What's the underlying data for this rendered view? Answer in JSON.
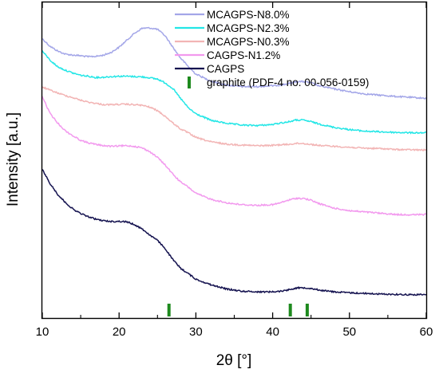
{
  "chart_data": {
    "type": "line",
    "xlabel": "2θ [°]",
    "ylabel": "Intensity [a.u.]",
    "xlim": [
      10,
      60
    ],
    "ylim": [
      0,
      100
    ],
    "xticks": [
      "10",
      "20",
      "30",
      "40",
      "50",
      "60"
    ],
    "yticks_shown": false,
    "legend_position": "top-center",
    "series": [
      {
        "name": "MCAGPS-N8.0%",
        "color": "#a3a6e8",
        "x": [
          10,
          11,
          12,
          13,
          14,
          15,
          16,
          17,
          18,
          19,
          20,
          21,
          22,
          23,
          24,
          25,
          26,
          27,
          28,
          29,
          30,
          32,
          34,
          36,
          38,
          40,
          41,
          42,
          43,
          44,
          45,
          46,
          48,
          50,
          52,
          54,
          56,
          58,
          60
        ],
        "y": [
          88.5,
          86.1,
          84.6,
          83.6,
          83.3,
          83.1,
          82.8,
          82.9,
          83.3,
          84.2,
          85.8,
          88.0,
          90.2,
          91.8,
          91.9,
          91.5,
          89.4,
          85.8,
          82.4,
          79.7,
          77.3,
          75.0,
          73.8,
          73.3,
          73.3,
          73.6,
          73.8,
          74.2,
          74.9,
          74.9,
          74.5,
          73.6,
          72.6,
          71.7,
          71.0,
          70.6,
          70.2,
          69.9,
          69.6
        ]
      },
      {
        "name": "MCAGPS-N2.3%",
        "color": "#22e6e6",
        "x": [
          10,
          11,
          12,
          13,
          14,
          15,
          16,
          17,
          18,
          19,
          20,
          21,
          22,
          23,
          24,
          25,
          26,
          27,
          28,
          29,
          30,
          32,
          34,
          36,
          38,
          40,
          41,
          42,
          43,
          44,
          45,
          46,
          48,
          50,
          52,
          54,
          56,
          58,
          60
        ],
        "y": [
          84.6,
          81.7,
          79.6,
          78.5,
          77.6,
          76.9,
          76.6,
          76.2,
          76.3,
          76.5,
          76.6,
          76.6,
          76.5,
          76.4,
          76.1,
          75.7,
          74.5,
          72.7,
          69.6,
          66.6,
          64.7,
          62.6,
          61.7,
          61.1,
          61.0,
          61.3,
          61.8,
          62.1,
          62.7,
          62.7,
          62.2,
          61.5,
          60.4,
          59.7,
          59.2,
          59.0,
          58.8,
          58.7,
          58.7
        ]
      },
      {
        "name": "MCAGPS-N0.3%",
        "color": "#f2b4b4",
        "x": [
          10,
          11,
          12,
          13,
          14,
          15,
          16,
          17,
          18,
          19,
          20,
          21,
          22,
          23,
          24,
          25,
          26,
          27,
          28,
          29,
          30,
          32,
          34,
          36,
          38,
          40,
          41,
          42,
          43,
          44,
          45,
          46,
          48,
          50,
          52,
          54,
          56,
          58,
          60
        ],
        "y": [
          73.2,
          72.2,
          71.3,
          70.5,
          69.8,
          69.0,
          68.4,
          68.0,
          67.6,
          67.6,
          67.7,
          67.7,
          67.6,
          67.4,
          66.8,
          65.7,
          63.9,
          61.8,
          59.9,
          58.7,
          57.2,
          55.8,
          55.1,
          54.8,
          54.6,
          54.7,
          54.9,
          55.0,
          55.3,
          55.3,
          55.0,
          54.7,
          54.4,
          54.1,
          53.8,
          53.7,
          53.4,
          53.3,
          53.2
        ]
      },
      {
        "name": "CAGPS-N1.2%",
        "color": "#f299ee",
        "x": [
          10,
          11,
          12,
          13,
          14,
          15,
          16,
          17,
          18,
          19,
          20,
          21,
          22,
          23,
          24,
          25,
          26,
          27,
          28,
          29,
          30,
          32,
          34,
          36,
          38,
          40,
          41,
          42,
          43,
          44,
          45,
          46,
          48,
          50,
          52,
          54,
          56,
          58,
          60
        ],
        "y": [
          70.2,
          64.8,
          61.8,
          59.3,
          57.7,
          56.3,
          55.5,
          55.0,
          54.6,
          54.4,
          54.5,
          54.6,
          54.4,
          53.9,
          52.7,
          50.9,
          48.5,
          45.6,
          43.1,
          41.5,
          39.5,
          37.6,
          36.5,
          35.9,
          35.7,
          35.9,
          36.5,
          37.3,
          37.9,
          37.9,
          37.3,
          36.3,
          34.8,
          34.0,
          33.6,
          33.2,
          32.8,
          32.7,
          32.8
        ]
      },
      {
        "name": "CAGPS",
        "color": "#14124f",
        "x": [
          10,
          11,
          12,
          13,
          14,
          15,
          16,
          17,
          18,
          19,
          20,
          21,
          22,
          23,
          24,
          25,
          26,
          27,
          28,
          29,
          30,
          32,
          34,
          36,
          38,
          40,
          41,
          42,
          43,
          44,
          45,
          46,
          48,
          50,
          52,
          54,
          56,
          58,
          60
        ],
        "y": [
          47.1,
          42.6,
          39.2,
          36.6,
          34.5,
          33.1,
          32.1,
          31.3,
          30.8,
          30.6,
          30.6,
          30.5,
          29.6,
          28.2,
          26.3,
          24.6,
          22.0,
          18.5,
          15.8,
          14.1,
          12.3,
          10.5,
          9.2,
          8.5,
          8.3,
          8.3,
          8.5,
          8.9,
          9.5,
          9.6,
          9.4,
          8.9,
          8.3,
          8.0,
          7.8,
          7.6,
          7.5,
          7.4,
          7.4
        ]
      }
    ],
    "reference": {
      "name": "graphite (PDF-4 no. 00-056-0159)",
      "color": "#1e8a1e",
      "positions": [
        26.5,
        42.3,
        44.5
      ]
    }
  }
}
